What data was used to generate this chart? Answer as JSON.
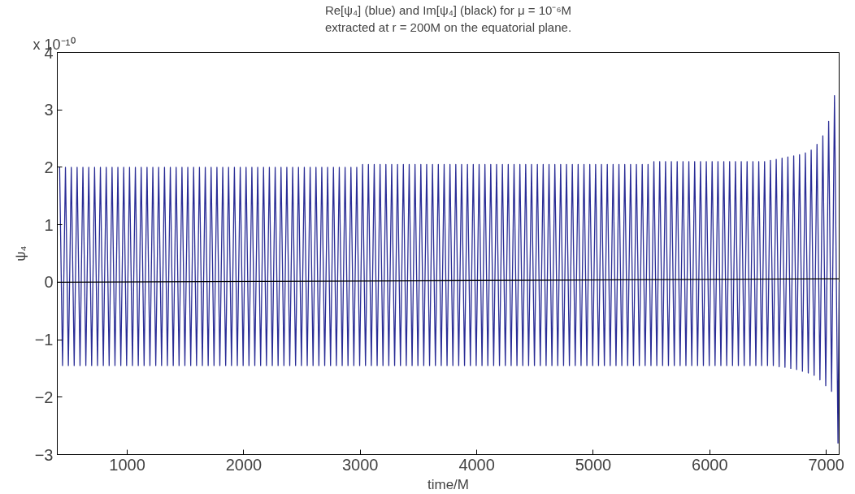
{
  "chart_data": {
    "type": "line",
    "title": "Re[ψ₄] (blue) and Im[ψ₄] (black) for μ = 10⁻⁶M",
    "subtitle": "extracted at r = 200M on the equatorial plane.",
    "xlabel": "time/M",
    "ylabel": "ψ₄",
    "annotations": [
      "x 10⁻¹⁰"
    ],
    "xlim": [
      400,
      7110
    ],
    "ylim": [
      -3,
      4
    ],
    "xticks": [
      1000,
      2000,
      3000,
      4000,
      5000,
      6000,
      7000
    ],
    "yticks": [
      -3,
      -2,
      -1,
      0,
      1,
      2,
      3,
      4
    ],
    "grid": false,
    "marker": "none",
    "line_style": "solid",
    "series": [
      {
        "color": "#2a2d96",
        "x": [
          420,
          445,
          470,
          495,
          520,
          545,
          570,
          595,
          620,
          645,
          670,
          695,
          720,
          745,
          770,
          795,
          820,
          845,
          870,
          895,
          920,
          945,
          970,
          995,
          1020,
          1045,
          1070,
          1095,
          1120,
          1145,
          1170,
          1195,
          1220,
          1245,
          1270,
          1295,
          1320,
          1345,
          1370,
          1395,
          1420,
          1445,
          1470,
          1495,
          1520,
          1545,
          1570,
          1595,
          1620,
          1645,
          1670,
          1695,
          1720,
          1745,
          1770,
          1795,
          1820,
          1845,
          1870,
          1895,
          1920,
          1945,
          1970,
          1995,
          2020,
          2045,
          2070,
          2095,
          2120,
          2145,
          2170,
          2195,
          2220,
          2245,
          2270,
          2295,
          2320,
          2345,
          2370,
          2395,
          2420,
          2445,
          2470,
          2495,
          2520,
          2545,
          2570,
          2595,
          2620,
          2645,
          2670,
          2695,
          2720,
          2745,
          2770,
          2795,
          2820,
          2845,
          2870,
          2895,
          2920,
          2945,
          2970,
          2995,
          3020,
          3045,
          3070,
          3095,
          3120,
          3145,
          3170,
          3195,
          3220,
          3245,
          3270,
          3295,
          3320,
          3345,
          3370,
          3395,
          3420,
          3445,
          3470,
          3495,
          3520,
          3545,
          3570,
          3595,
          3620,
          3645,
          3670,
          3695,
          3720,
          3745,
          3770,
          3795,
          3820,
          3845,
          3870,
          3895,
          3920,
          3945,
          3970,
          3995,
          4020,
          4045,
          4070,
          4095,
          4120,
          4145,
          4170,
          4195,
          4220,
          4245,
          4270,
          4295,
          4320,
          4345,
          4370,
          4395,
          4420,
          4445,
          4470,
          4495,
          4520,
          4545,
          4570,
          4595,
          4620,
          4645,
          4670,
          4695,
          4720,
          4745,
          4770,
          4795,
          4820,
          4845,
          4870,
          4895,
          4920,
          4945,
          4970,
          4995,
          5020,
          5045,
          5070,
          5095,
          5120,
          5145,
          5170,
          5195,
          5220,
          5245,
          5270,
          5295,
          5320,
          5345,
          5370,
          5395,
          5420,
          5445,
          5470,
          5495,
          5520,
          5545,
          5570,
          5595,
          5620,
          5645,
          5670,
          5695,
          5720,
          5745,
          5770,
          5795,
          5820,
          5845,
          5870,
          5895,
          5920,
          5945,
          5970,
          5995,
          6020,
          6045,
          6070,
          6095,
          6120,
          6145,
          6170,
          6195,
          6220,
          6245,
          6270,
          6295,
          6320,
          6345,
          6370,
          6395,
          6420,
          6445,
          6470,
          6495,
          6520,
          6545,
          6570,
          6595,
          6620,
          6645,
          6670,
          6695,
          6720,
          6745,
          6770,
          6795,
          6820,
          6845,
          6870,
          6895,
          6920,
          6945,
          6970,
          6995,
          7020,
          7045,
          7070,
          7100,
          7110
        ],
        "values": [
          2.0,
          -1.45,
          2.0,
          -1.45,
          2.0,
          -1.45,
          2.0,
          -1.45,
          2.0,
          -1.45,
          2.0,
          -1.45,
          2.0,
          -1.45,
          2.0,
          -1.45,
          2.0,
          -1.45,
          2.0,
          -1.45,
          2.0,
          -1.45,
          2.0,
          -1.45,
          2.0,
          -1.45,
          2.0,
          -1.45,
          2.0,
          -1.45,
          2.0,
          -1.45,
          2.0,
          -1.45,
          2.0,
          -1.45,
          2.0,
          -1.45,
          2.0,
          -1.45,
          2.0,
          -1.45,
          2.0,
          -1.45,
          2.0,
          -1.45,
          2.0,
          -1.45,
          2.0,
          -1.45,
          2.0,
          -1.45,
          2.0,
          -1.45,
          2.0,
          -1.45,
          2.0,
          -1.45,
          2.0,
          -1.45,
          2.0,
          -1.45,
          2.0,
          -1.45,
          2.0,
          -1.45,
          2.0,
          -1.45,
          2.0,
          -1.45,
          2.0,
          -1.45,
          2.0,
          -1.45,
          2.0,
          -1.45,
          2.0,
          -1.45,
          2.0,
          -1.45,
          2.0,
          -1.45,
          2.0,
          -1.45,
          2.0,
          -1.45,
          2.0,
          -1.45,
          2.0,
          -1.45,
          2.0,
          -1.45,
          2.0,
          -1.45,
          2.0,
          -1.45,
          2.0,
          -1.45,
          2.0,
          -1.45,
          2.0,
          -1.45,
          2.0,
          -1.45,
          2.05,
          -1.45,
          2.05,
          -1.45,
          2.05,
          -1.45,
          2.05,
          -1.45,
          2.05,
          -1.45,
          2.05,
          -1.45,
          2.05,
          -1.45,
          2.05,
          -1.45,
          2.05,
          -1.45,
          2.05,
          -1.45,
          2.05,
          -1.45,
          2.05,
          -1.45,
          2.05,
          -1.45,
          2.05,
          -1.45,
          2.05,
          -1.45,
          2.05,
          -1.45,
          2.05,
          -1.45,
          2.05,
          -1.45,
          2.05,
          -1.45,
          2.05,
          -1.45,
          2.05,
          -1.45,
          2.05,
          -1.45,
          2.05,
          -1.45,
          2.05,
          -1.45,
          2.05,
          -1.45,
          2.05,
          -1.45,
          2.05,
          -1.45,
          2.05,
          -1.45,
          2.05,
          -1.45,
          2.05,
          -1.45,
          2.05,
          -1.45,
          2.05,
          -1.45,
          2.05,
          -1.45,
          2.05,
          -1.45,
          2.05,
          -1.45,
          2.05,
          -1.45,
          2.05,
          -1.45,
          2.05,
          -1.45,
          2.05,
          -1.45,
          2.05,
          -1.45,
          2.05,
          -1.45,
          2.05,
          -1.45,
          2.05,
          -1.45,
          2.05,
          -1.45,
          2.05,
          -1.45,
          2.05,
          -1.45,
          2.05,
          -1.45,
          2.05,
          -1.45,
          2.05,
          -1.45,
          2.05,
          -1.45,
          2.1,
          -1.45,
          2.1,
          -1.45,
          2.1,
          -1.45,
          2.1,
          -1.45,
          2.1,
          -1.45,
          2.1,
          -1.45,
          2.1,
          -1.45,
          2.1,
          -1.45,
          2.1,
          -1.45,
          2.1,
          -1.45,
          2.1,
          -1.45,
          2.1,
          -1.45,
          2.1,
          -1.45,
          2.1,
          -1.45,
          2.1,
          -1.45,
          2.1,
          -1.45,
          2.1,
          -1.45,
          2.1,
          -1.45,
          2.1,
          -1.45,
          2.1,
          -1.45,
          2.12,
          -1.45,
          2.14,
          -1.47,
          2.16,
          -1.48,
          2.18,
          -1.5,
          2.2,
          -1.52,
          2.22,
          -1.55,
          2.25,
          -1.58,
          2.3,
          -1.62,
          2.4,
          -1.7,
          2.55,
          -1.8,
          2.8,
          -1.9,
          3.25,
          -2.8,
          0
        ]
      },
      {
        "color": "#000000",
        "x": [
          400,
          4000,
          7000,
          7110
        ],
        "values": [
          0.0,
          0.03,
          0.06,
          0.06
        ]
      }
    ]
  }
}
